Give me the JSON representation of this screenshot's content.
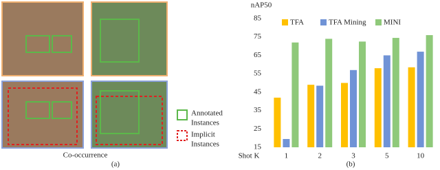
{
  "left_panel": {
    "caption": "Co-occurrence",
    "label": "(a)",
    "legend": [
      {
        "lines": [
          "Annotated",
          "Instances"
        ]
      },
      {
        "lines": [
          "Implicit",
          "Instances"
        ]
      }
    ]
  },
  "chart_data": {
    "type": "bar",
    "y_label": "nAP50",
    "x_label": "Shot K",
    "label": "(b)",
    "categories": [
      "1",
      "2",
      "3",
      "5",
      "10"
    ],
    "series": [
      {
        "name": "TFA",
        "color": "#ffc000",
        "values": [
          42,
          49,
          50,
          58,
          58.5
        ]
      },
      {
        "name": "TFA Mining",
        "color": "#7093d6",
        "values": [
          19.5,
          48.5,
          57,
          65,
          67
        ]
      },
      {
        "name": "MINI",
        "color": "#8fc97a",
        "values": [
          72,
          74,
          72.5,
          74.5,
          76
        ]
      }
    ],
    "ylim": [
      15,
      85
    ],
    "yticks": [
      15,
      25,
      35,
      45,
      55,
      65,
      75,
      85
    ],
    "grid": false
  }
}
